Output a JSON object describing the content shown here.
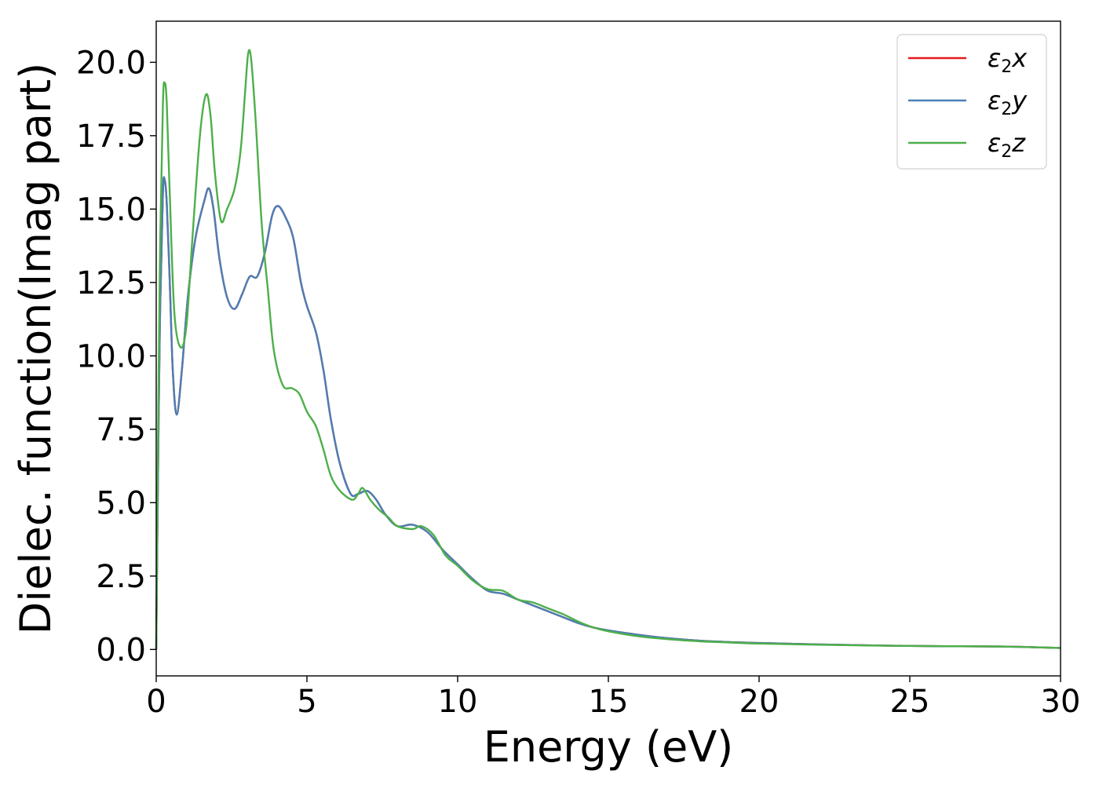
{
  "chart_data": {
    "type": "line",
    "title": "",
    "xlabel": "Energy (eV)",
    "ylabel": "Dielec. function(Imag part)",
    "xlim": [
      0,
      30
    ],
    "ylim": [
      -0.9,
      21.4
    ],
    "xticks": [
      0,
      5,
      10,
      15,
      20,
      25,
      30
    ],
    "xtick_labels": [
      "0",
      "5",
      "10",
      "15",
      "20",
      "25",
      "30"
    ],
    "yticks": [
      0,
      2.5,
      5,
      7.5,
      10,
      12.5,
      15,
      17.5,
      20
    ],
    "ytick_labels": [
      "0.0",
      "2.5",
      "5.0",
      "7.5",
      "10.0",
      "12.5",
      "15.0",
      "17.5",
      "20.0"
    ],
    "grid": false,
    "legend_position": "top-right",
    "series": [
      {
        "name": "ε₂x",
        "legend_base": "ε",
        "legend_sub": "2",
        "legend_suffix": "x",
        "color": "#e41a1c",
        "points": [
          [
            0,
            0
          ],
          [
            0.05,
            5
          ],
          [
            0.12,
            11
          ],
          [
            0.22,
            15.5
          ],
          [
            0.28,
            16
          ],
          [
            0.35,
            15.2
          ],
          [
            0.45,
            12.5
          ],
          [
            0.55,
            9.5
          ],
          [
            0.68,
            8
          ],
          [
            0.85,
            9.5
          ],
          [
            1.05,
            12
          ],
          [
            1.3,
            14
          ],
          [
            1.6,
            15.3
          ],
          [
            1.75,
            15.7
          ],
          [
            1.9,
            15
          ],
          [
            2.1,
            13.3
          ],
          [
            2.35,
            12
          ],
          [
            2.6,
            11.6
          ],
          [
            2.85,
            12.1
          ],
          [
            3.1,
            12.7
          ],
          [
            3.35,
            12.7
          ],
          [
            3.6,
            13.5
          ],
          [
            3.85,
            14.8
          ],
          [
            4.05,
            15.1
          ],
          [
            4.3,
            14.7
          ],
          [
            4.55,
            14
          ],
          [
            4.8,
            12.5
          ],
          [
            5.0,
            11.7
          ],
          [
            5.3,
            10.8
          ],
          [
            5.55,
            9.5
          ],
          [
            5.8,
            7.8
          ],
          [
            6.1,
            6.3
          ],
          [
            6.45,
            5.3
          ],
          [
            6.7,
            5.3
          ],
          [
            7.0,
            5.4
          ],
          [
            7.3,
            5.1
          ],
          [
            7.6,
            4.6
          ],
          [
            8.0,
            4.2
          ],
          [
            8.5,
            4.25
          ],
          [
            9.0,
            4.0
          ],
          [
            9.5,
            3.4
          ],
          [
            10.0,
            2.9
          ],
          [
            10.5,
            2.4
          ],
          [
            11.0,
            2.0
          ],
          [
            11.5,
            1.9
          ],
          [
            12.0,
            1.7
          ],
          [
            12.5,
            1.5
          ],
          [
            13.0,
            1.3
          ],
          [
            13.5,
            1.1
          ],
          [
            14.0,
            0.9
          ],
          [
            14.5,
            0.75
          ],
          [
            15.0,
            0.65
          ],
          [
            16.0,
            0.5
          ],
          [
            17.0,
            0.38
          ],
          [
            18.0,
            0.3
          ],
          [
            19.0,
            0.25
          ],
          [
            20.0,
            0.22
          ],
          [
            22.0,
            0.17
          ],
          [
            25.0,
            0.12
          ],
          [
            28.0,
            0.1
          ],
          [
            30.0,
            0.05
          ]
        ]
      },
      {
        "name": "ε₂y",
        "legend_base": "ε",
        "legend_sub": "2",
        "legend_suffix": "y",
        "color": "#4a7fb5",
        "points": [
          [
            0,
            0
          ],
          [
            0.05,
            5
          ],
          [
            0.12,
            11
          ],
          [
            0.22,
            15.5
          ],
          [
            0.28,
            16
          ],
          [
            0.35,
            15.2
          ],
          [
            0.45,
            12.5
          ],
          [
            0.55,
            9.5
          ],
          [
            0.68,
            8
          ],
          [
            0.85,
            9.5
          ],
          [
            1.05,
            12
          ],
          [
            1.3,
            14
          ],
          [
            1.6,
            15.3
          ],
          [
            1.75,
            15.7
          ],
          [
            1.9,
            15
          ],
          [
            2.1,
            13.3
          ],
          [
            2.35,
            12
          ],
          [
            2.6,
            11.6
          ],
          [
            2.85,
            12.1
          ],
          [
            3.1,
            12.7
          ],
          [
            3.35,
            12.7
          ],
          [
            3.6,
            13.5
          ],
          [
            3.85,
            14.8
          ],
          [
            4.05,
            15.1
          ],
          [
            4.3,
            14.7
          ],
          [
            4.55,
            14
          ],
          [
            4.8,
            12.5
          ],
          [
            5.0,
            11.7
          ],
          [
            5.3,
            10.8
          ],
          [
            5.55,
            9.5
          ],
          [
            5.8,
            7.8
          ],
          [
            6.1,
            6.3
          ],
          [
            6.45,
            5.3
          ],
          [
            6.7,
            5.3
          ],
          [
            7.0,
            5.4
          ],
          [
            7.3,
            5.1
          ],
          [
            7.6,
            4.6
          ],
          [
            8.0,
            4.2
          ],
          [
            8.5,
            4.25
          ],
          [
            9.0,
            4.0
          ],
          [
            9.5,
            3.4
          ],
          [
            10.0,
            2.9
          ],
          [
            10.5,
            2.4
          ],
          [
            11.0,
            2.0
          ],
          [
            11.5,
            1.9
          ],
          [
            12.0,
            1.7
          ],
          [
            12.5,
            1.5
          ],
          [
            13.0,
            1.3
          ],
          [
            13.5,
            1.1
          ],
          [
            14.0,
            0.9
          ],
          [
            14.5,
            0.75
          ],
          [
            15.0,
            0.65
          ],
          [
            16.0,
            0.5
          ],
          [
            17.0,
            0.38
          ],
          [
            18.0,
            0.3
          ],
          [
            19.0,
            0.25
          ],
          [
            20.0,
            0.22
          ],
          [
            22.0,
            0.17
          ],
          [
            25.0,
            0.12
          ],
          [
            28.0,
            0.1
          ],
          [
            30.0,
            0.05
          ]
        ]
      },
      {
        "name": "ε₂z",
        "legend_base": "ε",
        "legend_sub": "2",
        "legend_suffix": "z",
        "color": "#4daf4a",
        "points": [
          [
            0,
            0
          ],
          [
            0.05,
            6
          ],
          [
            0.12,
            13
          ],
          [
            0.22,
            18.5
          ],
          [
            0.28,
            19.3
          ],
          [
            0.35,
            18.6
          ],
          [
            0.45,
            15.5
          ],
          [
            0.6,
            11.5
          ],
          [
            0.8,
            10.3
          ],
          [
            1.0,
            11
          ],
          [
            1.2,
            14
          ],
          [
            1.45,
            17.5
          ],
          [
            1.65,
            18.9
          ],
          [
            1.8,
            18.2
          ],
          [
            1.95,
            16.2
          ],
          [
            2.15,
            14.6
          ],
          [
            2.35,
            15
          ],
          [
            2.6,
            15.7
          ],
          [
            2.8,
            17
          ],
          [
            2.95,
            19
          ],
          [
            3.05,
            20.3
          ],
          [
            3.15,
            20.1
          ],
          [
            3.3,
            18
          ],
          [
            3.5,
            14.5
          ],
          [
            3.7,
            12.3
          ],
          [
            3.9,
            10.2
          ],
          [
            4.2,
            9.0
          ],
          [
            4.5,
            8.9
          ],
          [
            4.75,
            8.7
          ],
          [
            5.0,
            8.1
          ],
          [
            5.3,
            7.6
          ],
          [
            5.55,
            6.8
          ],
          [
            5.8,
            5.9
          ],
          [
            6.1,
            5.4
          ],
          [
            6.5,
            5.1
          ],
          [
            6.7,
            5.3
          ],
          [
            6.85,
            5.5
          ],
          [
            7.1,
            5.1
          ],
          [
            7.4,
            4.75
          ],
          [
            7.7,
            4.5
          ],
          [
            8.0,
            4.2
          ],
          [
            8.5,
            4.1
          ],
          [
            8.8,
            4.2
          ],
          [
            9.2,
            3.9
          ],
          [
            9.6,
            3.2
          ],
          [
            10.0,
            2.85
          ],
          [
            10.5,
            2.35
          ],
          [
            11.0,
            2.05
          ],
          [
            11.5,
            2.0
          ],
          [
            12.0,
            1.7
          ],
          [
            12.5,
            1.6
          ],
          [
            13.0,
            1.4
          ],
          [
            13.5,
            1.2
          ],
          [
            14.0,
            0.95
          ],
          [
            14.5,
            0.75
          ],
          [
            15.0,
            0.62
          ],
          [
            16.0,
            0.45
          ],
          [
            17.0,
            0.35
          ],
          [
            18.0,
            0.28
          ],
          [
            19.0,
            0.24
          ],
          [
            20.0,
            0.2
          ],
          [
            22.0,
            0.16
          ],
          [
            25.0,
            0.12
          ],
          [
            28.0,
            0.1
          ],
          [
            30.0,
            0.05
          ]
        ]
      }
    ]
  }
}
